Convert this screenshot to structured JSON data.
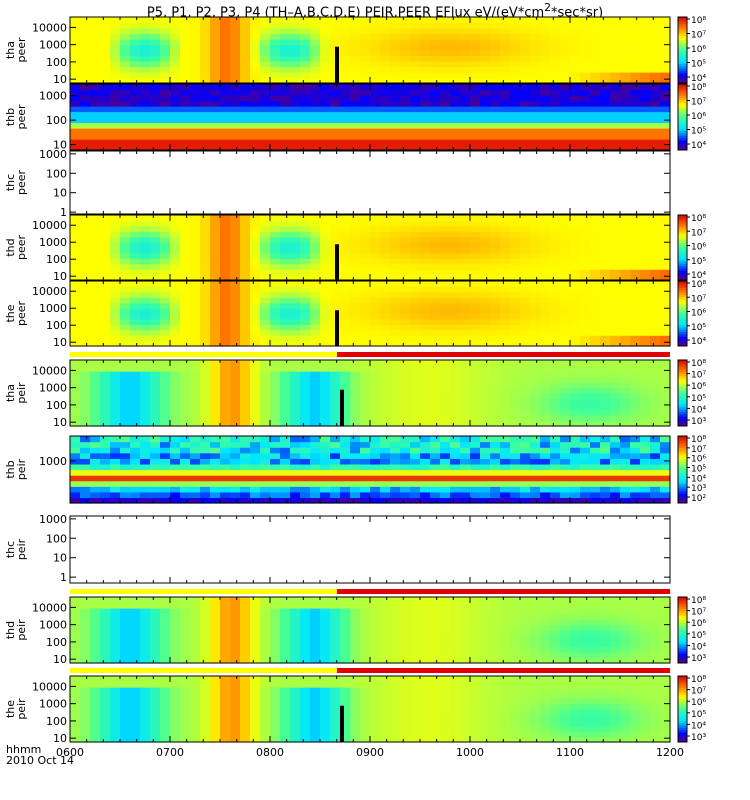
{
  "title": {
    "main": "P5, P1, P2, P3, P4 (TH–A,B,C,D,E) PEIR,PEER EFlux eV/(eV*cm",
    "sup": "2",
    "tail": "*sec*sr)"
  },
  "time_axis": {
    "label_hhmm": "hhmm",
    "label_date": "2010 Oct 14",
    "range_hours": [
      6.0,
      12.0
    ],
    "ticks": [
      {
        "value": 6,
        "label": "0600"
      },
      {
        "value": 7,
        "label": "0700"
      },
      {
        "value": 8,
        "label": "0800"
      },
      {
        "value": 9,
        "label": "0900"
      },
      {
        "value": 10,
        "label": "1000"
      },
      {
        "value": 11,
        "label": "1100"
      },
      {
        "value": 12,
        "label": "1200"
      }
    ]
  },
  "colors": {
    "mode_bar_slow": "#ffff00",
    "mode_bar_fast": "#e00000",
    "no_data": "#ffffff",
    "gap_marker": "#000000"
  },
  "chart_data": [
    {
      "type": "heatmap",
      "probe": "tha",
      "instrument": "peer",
      "ylabel": "tha peer",
      "yscale": "log",
      "ylim": [
        6,
        40000
      ],
      "y_ticks": [
        "10000",
        "1000",
        "100",
        "10"
      ],
      "colorbar": true,
      "cbar_labels": [
        "10⁸",
        "10⁷",
        "10⁶",
        "10⁵",
        "10⁴"
      ],
      "mode_bar": false,
      "pattern": "std",
      "gap_hour": 8.67
    },
    {
      "type": "heatmap",
      "probe": "thb",
      "instrument": "peer",
      "ylabel": "thb peer",
      "yscale": "log",
      "ylim": [
        6,
        3000
      ],
      "y_ticks": [
        "1000",
        "100",
        "10"
      ],
      "colorbar": true,
      "cbar_labels": [
        "10⁸",
        "10⁷",
        "10⁶",
        "10⁵",
        "10⁴"
      ],
      "mode_bar": false,
      "pattern": "thb_e"
    },
    {
      "type": "heatmap",
      "probe": "thc",
      "instrument": "peer",
      "ylabel": "thc peer",
      "yscale": "log",
      "ylim": [
        0.8,
        1400
      ],
      "y_ticks": [
        "1000",
        "100",
        "10",
        "1"
      ],
      "colorbar": false,
      "mode_bar": false,
      "pattern": "empty"
    },
    {
      "type": "heatmap",
      "probe": "thd",
      "instrument": "peer",
      "ylabel": "thd peer",
      "yscale": "log",
      "ylim": [
        6,
        40000
      ],
      "y_ticks": [
        "10000",
        "1000",
        "100",
        "10"
      ],
      "colorbar": true,
      "cbar_labels": [
        "10⁸",
        "10⁷",
        "10⁶",
        "10⁵",
        "10⁴"
      ],
      "mode_bar": false,
      "pattern": "std",
      "gap_hour": 8.67
    },
    {
      "type": "heatmap",
      "probe": "the",
      "instrument": "peer",
      "ylabel": "the peer",
      "yscale": "log",
      "ylim": [
        6,
        40000
      ],
      "y_ticks": [
        "10000",
        "1000",
        "100",
        "10"
      ],
      "colorbar": true,
      "cbar_labels": [
        "10⁸",
        "10⁷",
        "10⁶",
        "10⁵",
        "10⁴"
      ],
      "mode_bar": false,
      "pattern": "std",
      "gap_hour": 8.67
    },
    {
      "type": "heatmap",
      "probe": "tha",
      "instrument": "peir",
      "ylabel": "tha peir",
      "yscale": "log",
      "ylim": [
        6,
        40000
      ],
      "y_ticks": [
        "10000",
        "1000",
        "100",
        "10"
      ],
      "colorbar": true,
      "cbar_labels": [
        "10⁸",
        "10⁷",
        "10⁶",
        "10⁵",
        "10⁴",
        "10³"
      ],
      "mode_bar": true,
      "mode_switch_hour": 8.67,
      "pattern": "ion",
      "gap_hour": 8.72
    },
    {
      "type": "heatmap",
      "probe": "thb",
      "instrument": "peir",
      "ylabel": "thb peir",
      "yscale": "log",
      "ylim": [
        30,
        8000
      ],
      "y_ticks": [
        "1000"
      ],
      "colorbar": true,
      "cbar_labels": [
        "10⁸",
        "10⁷",
        "10⁶",
        "10⁵",
        "10⁴",
        "10³",
        "10²"
      ],
      "mode_bar": false,
      "pattern": "thb_i"
    },
    {
      "type": "heatmap",
      "probe": "thc",
      "instrument": "peir",
      "ylabel": "thc peir",
      "yscale": "log",
      "ylim": [
        0.5,
        1400
      ],
      "y_ticks": [
        "1000",
        "100",
        "10",
        "1"
      ],
      "colorbar": false,
      "mode_bar": false,
      "pattern": "empty"
    },
    {
      "type": "heatmap",
      "probe": "thd",
      "instrument": "peir",
      "ylabel": "thd peir",
      "yscale": "log",
      "ylim": [
        6,
        40000
      ],
      "y_ticks": [
        "10000",
        "1000",
        "100",
        "10"
      ],
      "colorbar": true,
      "cbar_labels": [
        "10⁸",
        "10⁷",
        "10⁶",
        "10⁵",
        "10⁴",
        "10³"
      ],
      "mode_bar": true,
      "mode_switch_hour": 8.67,
      "pattern": "ion"
    },
    {
      "type": "heatmap",
      "probe": "the",
      "instrument": "peir",
      "ylabel": "the peir",
      "yscale": "log",
      "ylim": [
        6,
        40000
      ],
      "y_ticks": [
        "10000",
        "1000",
        "100",
        "10"
      ],
      "colorbar": true,
      "cbar_labels": [
        "10⁸",
        "10⁷",
        "10⁶",
        "10⁵",
        "10⁴",
        "10³"
      ],
      "mode_bar": true,
      "mode_switch_hour": 8.67,
      "pattern": "ion",
      "gap_hour": 8.72
    }
  ]
}
